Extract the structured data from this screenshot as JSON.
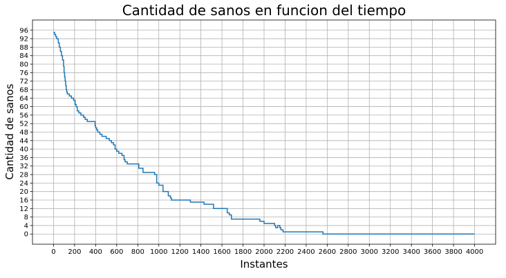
{
  "chart_data": {
    "type": "line",
    "title": "Cantidad de sanos en funcion del tiempo",
    "xlabel": "Instantes",
    "ylabel": "Cantidad de sanos",
    "xlim": [
      -200,
      4200
    ],
    "ylim": [
      -4.8,
      100.8
    ],
    "xticks": [
      0,
      200,
      400,
      600,
      800,
      1000,
      1200,
      1400,
      1600,
      1800,
      2000,
      2200,
      2400,
      2600,
      2800,
      3000,
      3200,
      3400,
      3600,
      3800,
      4000
    ],
    "yticks": [
      0,
      4,
      8,
      12,
      16,
      20,
      24,
      28,
      32,
      36,
      40,
      44,
      48,
      52,
      56,
      60,
      64,
      68,
      72,
      76,
      80,
      84,
      88,
      92,
      96
    ],
    "grid": true,
    "line_color": "#1f77b4",
    "step": "post",
    "x": [
      0,
      10,
      20,
      30,
      45,
      55,
      65,
      75,
      85,
      95,
      100,
      105,
      110,
      115,
      120,
      125,
      130,
      150,
      170,
      190,
      205,
      215,
      225,
      240,
      260,
      285,
      300,
      320,
      340,
      360,
      395,
      400,
      410,
      420,
      440,
      460,
      480,
      500,
      530,
      550,
      570,
      585,
      600,
      620,
      650,
      670,
      680,
      690,
      700,
      750,
      810,
      850,
      950,
      960,
      980,
      1000,
      1020,
      1040,
      1070,
      1090,
      1110,
      1120,
      1200,
      1300,
      1360,
      1430,
      1520,
      1560,
      1650,
      1670,
      1690,
      1920,
      1960,
      2000,
      2080,
      2100,
      2110,
      2130,
      2150,
      2160,
      2170,
      2180,
      2190,
      2200,
      2560,
      4000
    ],
    "y": [
      95,
      94,
      93,
      92,
      90,
      88,
      86,
      84,
      82,
      79,
      76,
      74,
      72,
      70,
      68,
      67,
      66,
      65,
      64,
      63,
      61,
      60,
      58,
      57,
      56,
      55,
      54,
      53,
      53,
      53,
      51,
      50,
      49,
      48,
      47,
      46,
      46,
      45,
      44,
      43,
      42,
      40,
      39,
      38,
      37,
      35,
      34,
      34,
      33,
      33,
      31,
      29,
      29,
      28,
      24,
      23,
      23,
      20,
      20,
      18,
      17,
      16,
      16,
      15,
      15,
      14,
      12,
      12,
      10,
      9,
      7,
      7,
      6,
      5,
      5,
      4,
      3,
      4,
      3,
      2,
      2,
      1,
      1,
      1,
      0,
      0
    ]
  }
}
